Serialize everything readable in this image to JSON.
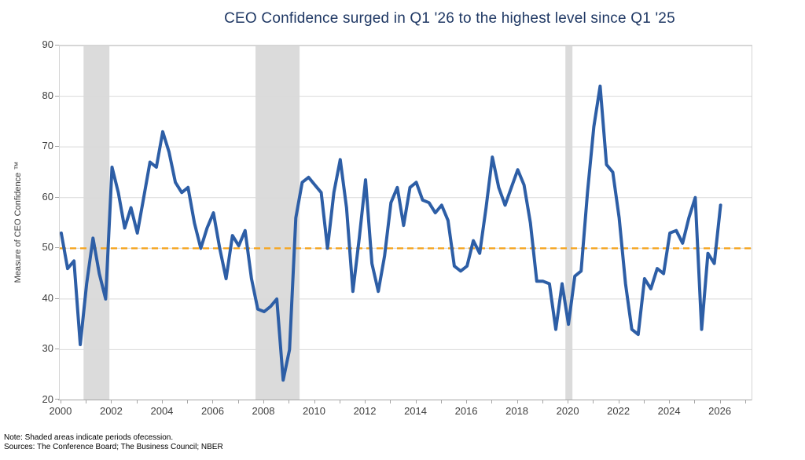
{
  "title": "CEO Confidence surged in Q1 '26 to the highest level since Q1 '25",
  "y_axis": {
    "label": "Measure of CEO Confidence ™",
    "ticks": [
      20,
      30,
      40,
      50,
      60,
      70,
      80,
      90
    ],
    "min": 20,
    "max": 90
  },
  "x_axis": {
    "tick_years": [
      2000,
      2002,
      2004,
      2006,
      2008,
      2010,
      2012,
      2014,
      2016,
      2018,
      2020,
      2022,
      2024,
      2026
    ],
    "minor_tick_start": 2000,
    "minor_tick_end": 2027
  },
  "notes": {
    "line1": "Note: Shaded areas indicate periods ofecession.",
    "line2": "Sources: The Conference Board; The Business Council; NBER"
  },
  "colors": {
    "line": "#2D5EA6",
    "reference_line": "#F5A623",
    "recession_shade": "#DBDBDB",
    "gridline": "#D9D9D9",
    "title": "#1F3864",
    "tick_text": "#404040"
  },
  "reference_line": {
    "value": 50,
    "style": "dashed"
  },
  "recessions": [
    {
      "start_year": 2000.88,
      "end_year": 2001.9
    },
    {
      "start_year": 2007.66,
      "end_year": 2009.4
    },
    {
      "start_year": 2019.88,
      "end_year": 2020.16
    }
  ],
  "chart_data": {
    "type": "line",
    "title": "CEO Confidence surged in Q1 '26 to the highest level since Q1 '25",
    "xlabel": "",
    "ylabel": "Measure of CEO Confidence ™",
    "ylim": [
      20,
      90
    ],
    "grid": true,
    "legend": false,
    "frequency": "quarterly",
    "start": "2000 Q1",
    "end": "2026 Q1",
    "series": [
      {
        "name": "Measure of CEO Confidence",
        "values": [
          53,
          46,
          47.5,
          31,
          43,
          52,
          45,
          40,
          66,
          61,
          54,
          58,
          53,
          60,
          67,
          66,
          73,
          69,
          63,
          61,
          62,
          55,
          50,
          54,
          57,
          50,
          44,
          52.5,
          50.5,
          53.5,
          44,
          38,
          37.5,
          38.5,
          40,
          24,
          30,
          56,
          63,
          64,
          62.5,
          61,
          50,
          61,
          67.5,
          58,
          41.5,
          52,
          63.5,
          47,
          41.5,
          48.5,
          59,
          62,
          54.5,
          62,
          63,
          59.5,
          59,
          57,
          58.5,
          55.5,
          46.5,
          45.5,
          46.5,
          51.5,
          49,
          58,
          68,
          62,
          58.5,
          62,
          65.5,
          62.5,
          55,
          43.5,
          43.5,
          43,
          34,
          43,
          35,
          44.5,
          45.5,
          61,
          74,
          82,
          66.5,
          65,
          56,
          43,
          34,
          33,
          44,
          42,
          46,
          45,
          53,
          53.5,
          51,
          56,
          60,
          34,
          49,
          47,
          58.5
        ]
      }
    ],
    "annotations": [
      "Shaded bands mark NBER recessions",
      "Dashed line marks 50 threshold"
    ]
  }
}
